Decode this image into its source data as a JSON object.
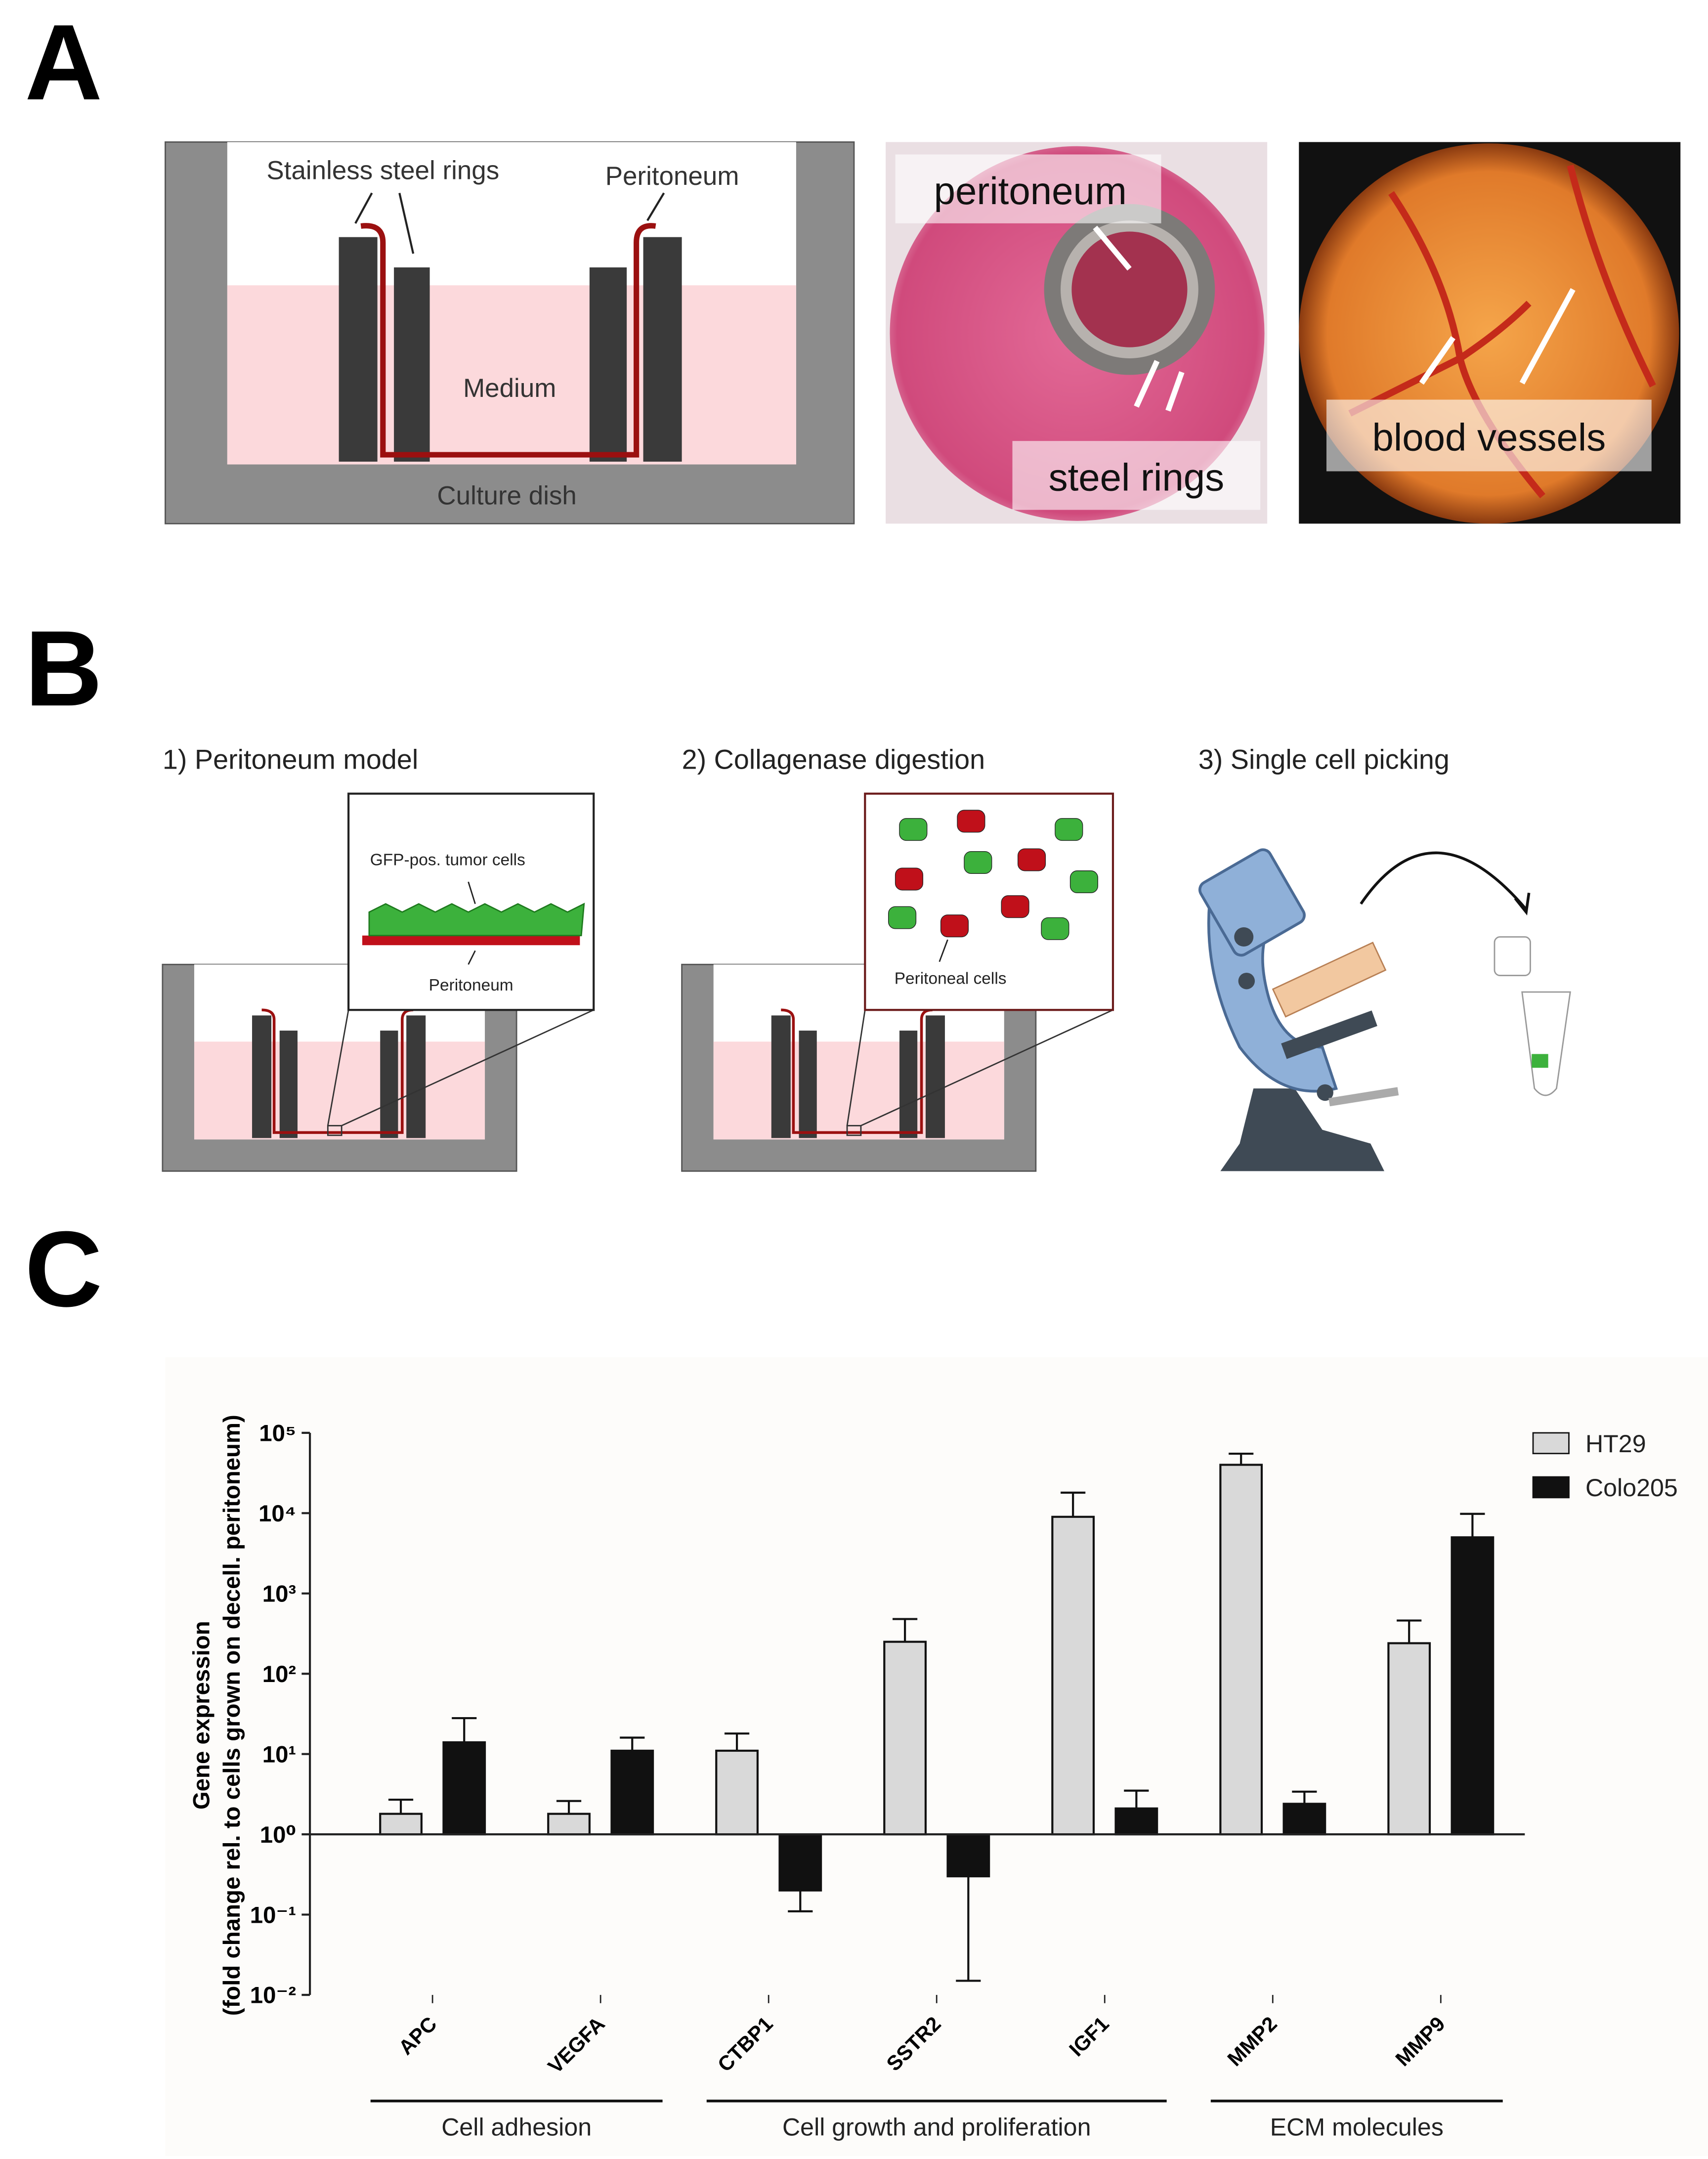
{
  "panel_labels": [
    "A",
    "B",
    "C"
  ],
  "panel_a": {
    "schematic": {
      "rings_label": "Stainless steel rings",
      "peritoneum_label": "Peritoneum",
      "medium_label": "Medium",
      "dish_label": "Culture dish"
    },
    "photo_1": {
      "top_label": "peritoneum",
      "bottom_label": "steel rings"
    },
    "photo_2": {
      "label": "blood vessels"
    }
  },
  "panel_b": {
    "steps": [
      "1) Peritoneum model",
      "2) Collagenase digestion",
      "3) Single cell picking"
    ],
    "inset_1": {
      "top_label": "GFP-pos. tumor cells",
      "bottom_label": "Peritoneum"
    },
    "inset_2": {
      "label": "Peritoneal cells"
    }
  },
  "chart_data": {
    "type": "bar",
    "log_scale": true,
    "y_label": [
      "Gene expression",
      "(fold change rel. to cells grown on decell. peritoneum)"
    ],
    "categories": [
      "APC",
      "VEGFA",
      "CTBP1",
      "SSTR2",
      "IGF1",
      "MMP2",
      "MMP9"
    ],
    "series": [
      {
        "name": "HT29",
        "color": "#d9d9d9",
        "values": [
          1.8,
          1.8,
          11,
          250,
          9000,
          40000,
          240
        ],
        "errors": [
          0.9,
          0.8,
          7,
          230,
          9000,
          15000,
          220
        ]
      },
      {
        "name": "Colo205",
        "color": "#111111",
        "values": [
          14,
          11,
          0.2,
          0.3,
          2.1,
          2.4,
          5000
        ],
        "errors": [
          14,
          5,
          0.09,
          0.285,
          1.4,
          1.0,
          4800
        ]
      }
    ],
    "ylim": [
      0.01,
      100000
    ],
    "yticks": [
      {
        "value": 100000,
        "label": "10⁵"
      },
      {
        "value": 10000,
        "label": "10⁴"
      },
      {
        "value": 1000,
        "label": "10³"
      },
      {
        "value": 100,
        "label": "10²"
      },
      {
        "value": 10,
        "label": "10¹"
      },
      {
        "value": 1,
        "label": "10⁰"
      },
      {
        "value": 0.1,
        "label": "10⁻¹"
      },
      {
        "value": 0.01,
        "label": "10⁻²"
      }
    ],
    "groups": [
      {
        "label": "Cell adhesion",
        "categories": [
          "APC",
          "VEGFA"
        ]
      },
      {
        "label": "Cell growth and proliferation",
        "categories": [
          "CTBP1",
          "SSTR2",
          "IGF1"
        ]
      },
      {
        "label": "ECM molecules",
        "categories": [
          "MMP2",
          "MMP9"
        ]
      }
    ],
    "legend": "top-right"
  }
}
